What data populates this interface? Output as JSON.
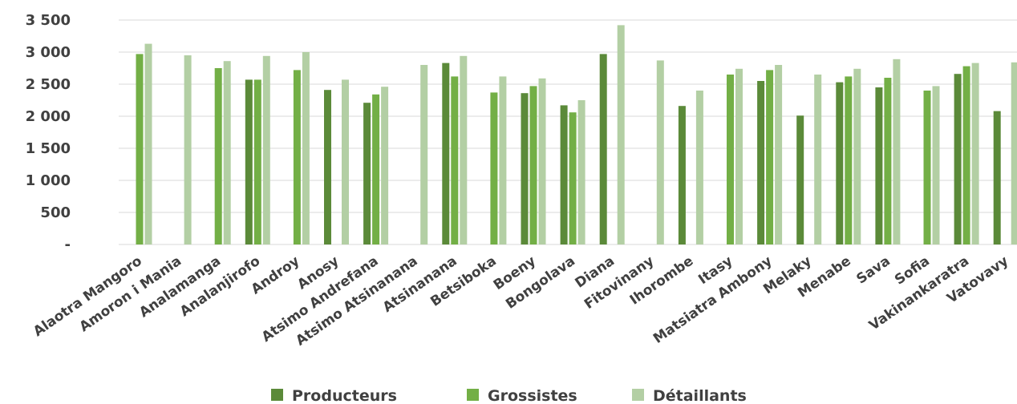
{
  "colors": {
    "series": [
      "#5b8a39",
      "#73af46",
      "#b3cfa4"
    ],
    "grid": "#d9d9d9",
    "text": "#404040"
  },
  "chart_data": {
    "type": "bar",
    "title": "",
    "xlabel": "",
    "ylabel": "",
    "ylim": [
      0,
      3500
    ],
    "y_ticks": [
      0,
      500,
      1000,
      1500,
      2000,
      2500,
      3000,
      3500
    ],
    "y_tick_labels": [
      "-",
      "500",
      "1 000",
      "1 500",
      "2 000",
      "2 500",
      "3 000",
      "3 500"
    ],
    "grid": true,
    "legend_position": "bottom",
    "categories": [
      "Alaotra Mangoro",
      "Amoron i Mania",
      "Analamanga",
      "Analanjirofo",
      "Androy",
      "Anosy",
      "Atsimo Andrefana",
      "Atsimo Atsinanana",
      "Atsinanana",
      "Betsiboka",
      "Boeny",
      "Bongolava",
      "Diana",
      "Fitovinany",
      "Ihorombe",
      "Itasy",
      "Matsiatra Ambony",
      "Melaky",
      "Menabe",
      "Sava",
      "Sofia",
      "Vakinankaratra",
      "Vatovavy"
    ],
    "series": [
      {
        "name": "Producteurs",
        "values": [
          null,
          null,
          null,
          2570,
          null,
          2410,
          2210,
          null,
          2830,
          null,
          2360,
          2170,
          2970,
          null,
          2160,
          null,
          2550,
          2010,
          2530,
          2450,
          null,
          2660,
          2080
        ]
      },
      {
        "name": "Grossistes",
        "values": [
          2970,
          null,
          2750,
          2570,
          2720,
          null,
          2340,
          null,
          2620,
          2370,
          2470,
          2060,
          null,
          null,
          null,
          2650,
          2720,
          null,
          2620,
          2600,
          2400,
          2780,
          null
        ]
      },
      {
        "name": "Détaillants",
        "values": [
          3130,
          2950,
          2860,
          2940,
          3000,
          2570,
          2460,
          2800,
          2940,
          2620,
          2590,
          2250,
          3420,
          2870,
          2400,
          2740,
          2800,
          2650,
          2740,
          2890,
          2470,
          2830,
          2840
        ]
      }
    ]
  }
}
